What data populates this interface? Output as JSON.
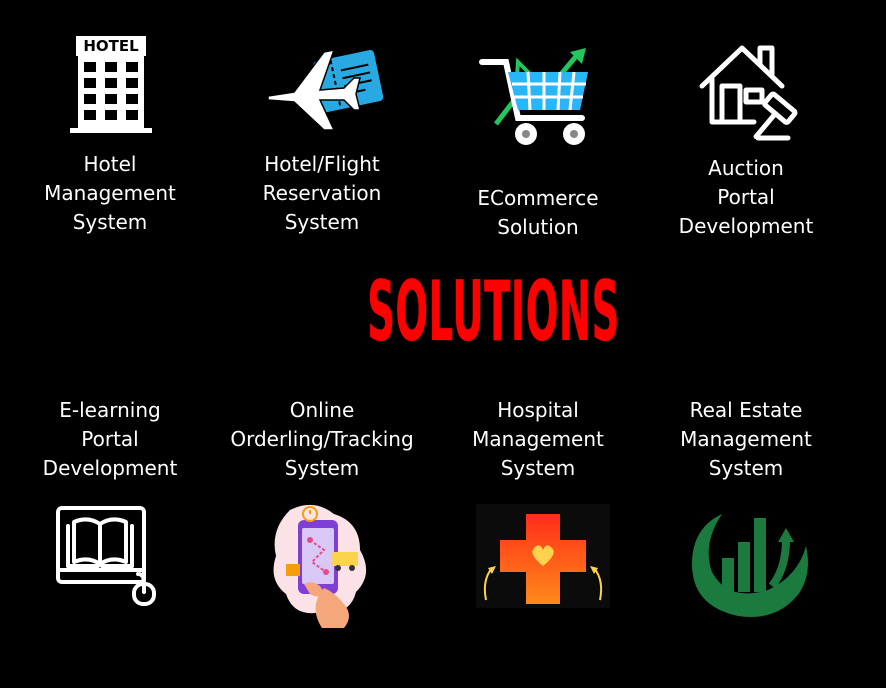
{
  "heading": "SOLUTIONS",
  "colors": {
    "background": "#000000",
    "text": "#ffffff",
    "heading": "#ff0000",
    "ecommerce_cart": "#29b6f6",
    "ecommerce_arrow": "#22c55e",
    "medical_cross": "#ff5a14",
    "real_estate": "#1b7a3e"
  },
  "solutions_top": [
    {
      "icon": "hotel-building-icon",
      "sign": "HOTEL",
      "lines": [
        "Hotel",
        "Management",
        "System"
      ]
    },
    {
      "icon": "airplane-ticket-icon",
      "lines": [
        "Hotel/Flight",
        "Reservation",
        "System"
      ]
    },
    {
      "icon": "shopping-cart-icon",
      "lines": [
        "ECommerce",
        "Solution"
      ]
    },
    {
      "icon": "auction-house-gavel-icon",
      "lines": [
        "Auction",
        "Portal",
        "Development"
      ]
    }
  ],
  "solutions_bottom": [
    {
      "icon": "book-monitor-mouse-icon",
      "lines": [
        "E-learning",
        "Portal",
        "Development"
      ]
    },
    {
      "icon": "phone-delivery-tracking-icon",
      "lines": [
        "Online",
        "Orderling/Tracking",
        "System"
      ]
    },
    {
      "icon": "medical-cross-heart-icon",
      "lines": [
        "Hospital",
        "Management",
        "System"
      ]
    },
    {
      "icon": "real-estate-growth-icon",
      "lines": [
        "Real Estate",
        "Management",
        "System"
      ]
    }
  ]
}
